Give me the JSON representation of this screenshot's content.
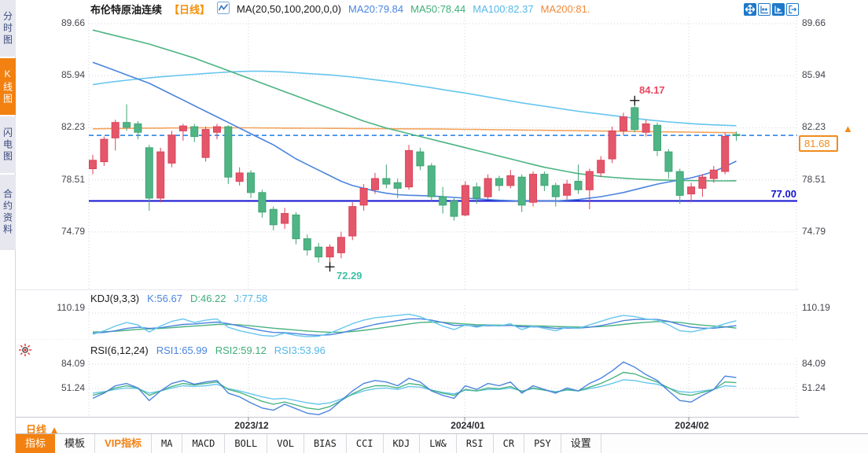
{
  "sidebar": {
    "items": [
      {
        "label": "分时图"
      },
      {
        "label": "K线图"
      },
      {
        "label": "闪电图"
      },
      {
        "label": "合约资料"
      }
    ]
  },
  "header": {
    "symbol": "布伦特原油连续",
    "period": "【日线】",
    "ma_settings": "MA(20,50,100,200,0,0)",
    "ma20": "MA20:79.84",
    "ma50": "MA50:78.44",
    "ma100": "MA100:82.37",
    "ma200": "MA200:81."
  },
  "top_buttons": {
    "icons": [
      "crosshair-move",
      "scale-horizontal",
      "chart-pointer",
      "pan-right"
    ]
  },
  "axes": {
    "main": [
      "89.66",
      "85.94",
      "82.23",
      "78.51",
      "74.79"
    ],
    "kdj": "110.19",
    "rsi_upper": "84.09",
    "rsi_lower": "51.24",
    "x_labels": [
      "2023/12",
      "2024/01",
      "2024/02"
    ]
  },
  "annotations": {
    "high": "84.17",
    "low": "72.29",
    "support": "77.00",
    "last_price": "81.68",
    "arrow": "▲"
  },
  "indicators": {
    "kdj_label": "KDJ(9,3,3)",
    "k": "K:56.67",
    "d": "D:46.22",
    "j": "J:77.58",
    "rsi_label": "RSI(6,12,24)",
    "rsi1": "RSI1:65.99",
    "rsi2": "RSI2:59.12",
    "rsi3": "RSI3:53.96"
  },
  "period_label": "日线",
  "period_arrow": "▲",
  "toolbar": {
    "tabs": [
      "指标",
      "模板",
      "VIP指标",
      "MA",
      "MACD",
      "BOLL",
      "VOL",
      "BIAS",
      "CCI",
      "KDJ",
      "LW&",
      "RSI",
      "CR",
      "PSY",
      "设置"
    ]
  },
  "colors": {
    "up": "#e4576b",
    "up_stroke": "#dd4258",
    "down": "#50b585",
    "down_stroke": "#41a474",
    "ma20": "#4b84dd",
    "ma50": "#4bb381",
    "ma100": "#67c6ee",
    "ma200": "#f3a45f",
    "accent_orange": "#f28111",
    "dashed_price": "#1d7de8",
    "support_blue": "#1010d0",
    "high_text": "#e84860",
    "low_text": "#3fbfa5",
    "grid": "#d3d3df"
  },
  "chart_data": {
    "type": "candlestick",
    "title": "布伦特原油连续 日线",
    "main": {
      "yticks": [
        89.66,
        85.94,
        82.23,
        78.51,
        74.79
      ],
      "ylim": [
        71.3,
        90.1
      ],
      "candles": [
        [
          79.3,
          80.3,
          78.9,
          79.9
        ],
        [
          79.8,
          81.6,
          79.5,
          81.4
        ],
        [
          81.5,
          82.8,
          80.6,
          82.6
        ],
        [
          82.6,
          83.9,
          82.0,
          82.25
        ],
        [
          82.5,
          82.7,
          81.4,
          81.9
        ],
        [
          80.8,
          81.0,
          76.3,
          77.2
        ],
        [
          77.2,
          80.8,
          76.9,
          80.5
        ],
        [
          79.7,
          82.0,
          79.4,
          81.7
        ],
        [
          82.0,
          82.5,
          81.3,
          82.35
        ],
        [
          82.3,
          82.5,
          81.2,
          81.6
        ],
        [
          80.1,
          82.3,
          79.8,
          82.1
        ],
        [
          81.9,
          82.5,
          81.4,
          82.3
        ],
        [
          82.3,
          82.4,
          78.2,
          78.7
        ],
        [
          78.4,
          79.4,
          78.1,
          79.0
        ],
        [
          79.0,
          79.2,
          77.2,
          77.6
        ],
        [
          77.6,
          77.8,
          75.8,
          76.2
        ],
        [
          76.4,
          76.6,
          74.9,
          75.3
        ],
        [
          75.4,
          76.5,
          75.0,
          76.1
        ],
        [
          76.0,
          76.2,
          73.9,
          74.3
        ],
        [
          74.3,
          74.6,
          73.1,
          73.5
        ],
        [
          73.7,
          74.0,
          72.6,
          73.0
        ],
        [
          73.0,
          73.9,
          72.29,
          73.7
        ],
        [
          73.3,
          74.8,
          72.9,
          74.4
        ],
        [
          74.5,
          76.9,
          74.2,
          76.6
        ],
        [
          76.7,
          78.2,
          76.3,
          77.9
        ],
        [
          77.8,
          79.0,
          77.5,
          78.6
        ],
        [
          78.6,
          79.6,
          77.9,
          78.2
        ],
        [
          78.3,
          78.6,
          77.2,
          77.9
        ],
        [
          78.0,
          81.0,
          77.8,
          80.6
        ],
        [
          80.5,
          80.8,
          79.2,
          79.5
        ],
        [
          79.5,
          79.7,
          77.0,
          77.3
        ],
        [
          77.3,
          78.0,
          76.1,
          76.7
        ],
        [
          77.0,
          77.2,
          75.6,
          75.9
        ],
        [
          76.0,
          78.4,
          75.9,
          78.1
        ],
        [
          78.0,
          78.3,
          76.8,
          77.2
        ],
        [
          77.3,
          78.9,
          77.1,
          78.6
        ],
        [
          78.6,
          78.8,
          77.7,
          78.1
        ],
        [
          78.1,
          79.2,
          77.9,
          78.8
        ],
        [
          78.7,
          78.9,
          76.2,
          76.7
        ],
        [
          76.9,
          79.1,
          76.6,
          78.9
        ],
        [
          78.9,
          79.1,
          77.7,
          78.1
        ],
        [
          78.1,
          78.3,
          76.6,
          77.3
        ],
        [
          77.4,
          78.5,
          77.1,
          78.2
        ],
        [
          78.4,
          79.6,
          77.5,
          77.8
        ],
        [
          77.8,
          79.3,
          76.4,
          79.1
        ],
        [
          79.0,
          80.2,
          78.7,
          79.9
        ],
        [
          80.0,
          82.3,
          79.7,
          82.0
        ],
        [
          82.0,
          83.3,
          81.7,
          83.0
        ],
        [
          83.66,
          84.17,
          81.9,
          82.1
        ],
        [
          81.9,
          82.8,
          81.6,
          82.5
        ],
        [
          82.4,
          82.6,
          80.2,
          80.6
        ],
        [
          80.5,
          80.7,
          78.6,
          79.1
        ],
        [
          79.1,
          79.3,
          76.8,
          77.4
        ],
        [
          77.5,
          78.3,
          76.9,
          78.0
        ],
        [
          77.9,
          78.9,
          77.3,
          78.7
        ],
        [
          78.6,
          79.5,
          78.3,
          79.2
        ],
        [
          79.1,
          81.9,
          78.9,
          81.6
        ],
        [
          81.75,
          81.95,
          81.3,
          81.68
        ]
      ],
      "ma20": [
        86.9,
        86.6,
        86.3,
        86.0,
        85.7,
        85.4,
        85.0,
        84.6,
        84.2,
        83.8,
        83.4,
        83.0,
        82.6,
        82.2,
        81.8,
        81.4,
        81.0,
        80.5,
        80.0,
        79.6,
        79.2,
        78.8,
        78.4,
        78.1,
        77.9,
        77.7,
        77.55,
        77.45,
        77.4,
        77.38,
        77.35,
        77.3,
        77.25,
        77.2,
        77.15,
        77.1,
        77.05,
        77.02,
        77.0,
        77.0,
        77.0,
        77.0,
        77.05,
        77.1,
        77.2,
        77.3,
        77.45,
        77.6,
        77.8,
        78.0,
        78.2,
        78.35,
        78.5,
        78.65,
        78.85,
        79.1,
        79.45,
        79.84
      ],
      "ma50": [
        89.2,
        89.0,
        88.8,
        88.6,
        88.4,
        88.2,
        87.95,
        87.7,
        87.45,
        87.2,
        86.9,
        86.6,
        86.3,
        86.0,
        85.7,
        85.4,
        85.1,
        84.8,
        84.5,
        84.2,
        83.9,
        83.6,
        83.3,
        83.0,
        82.7,
        82.45,
        82.2,
        82.0,
        81.8,
        81.6,
        81.4,
        81.2,
        81.0,
        80.8,
        80.6,
        80.4,
        80.2,
        80.0,
        79.8,
        79.6,
        79.4,
        79.25,
        79.1,
        78.95,
        78.85,
        78.75,
        78.68,
        78.62,
        78.57,
        78.53,
        78.5,
        78.48,
        78.46,
        78.45,
        78.44,
        78.43,
        78.43,
        78.44
      ],
      "ma100": [
        85.3,
        85.42,
        85.52,
        85.62,
        85.7,
        85.78,
        85.86,
        85.92,
        85.98,
        86.04,
        86.1,
        86.15,
        86.2,
        86.24,
        86.26,
        86.26,
        86.24,
        86.2,
        86.15,
        86.1,
        86.05,
        86.0,
        85.92,
        85.84,
        85.75,
        85.65,
        85.55,
        85.45,
        85.32,
        85.2,
        85.08,
        84.95,
        84.82,
        84.7,
        84.56,
        84.42,
        84.28,
        84.14,
        84.0,
        83.88,
        83.76,
        83.64,
        83.52,
        83.4,
        83.3,
        83.2,
        83.1,
        83.0,
        82.9,
        82.8,
        82.72,
        82.64,
        82.58,
        82.52,
        82.47,
        82.43,
        82.4,
        82.37
      ],
      "ma200": [
        82.15,
        82.16,
        82.17,
        82.18,
        82.19,
        82.2,
        82.2,
        82.21,
        82.21,
        82.22,
        82.22,
        82.22,
        82.22,
        82.22,
        82.22,
        82.21,
        82.21,
        82.2,
        82.2,
        82.19,
        82.19,
        82.18,
        82.18,
        82.17,
        82.17,
        82.16,
        82.16,
        82.15,
        82.15,
        82.14,
        82.14,
        82.13,
        82.12,
        82.11,
        82.1,
        82.09,
        82.08,
        82.07,
        82.06,
        82.05,
        82.04,
        82.03,
        82.02,
        82.01,
        82.0,
        81.99,
        81.98,
        81.97,
        81.96,
        81.95,
        81.94,
        81.93,
        81.92,
        81.91,
        81.9,
        81.89,
        81.88,
        81.87
      ],
      "high_annotation": {
        "value": 84.17,
        "index": 48
      },
      "low_annotation": {
        "value": 72.29,
        "index": 21
      },
      "support_level": 77.0,
      "last_price": 81.68
    },
    "kdj": {
      "params": "9,3,3",
      "ytick": 110.19,
      "current": {
        "k": 56.67,
        "d": 46.22,
        "j": 77.58
      },
      "k": [
        25,
        28,
        35,
        45,
        50,
        45,
        48,
        55,
        62,
        64,
        68,
        72,
        65,
        55,
        45,
        35,
        28,
        27,
        23,
        18,
        16,
        18,
        26,
        38,
        50,
        62,
        70,
        78,
        85,
        86,
        80,
        70,
        58,
        58,
        55,
        57,
        56,
        58,
        52,
        52,
        50,
        45,
        47,
        46,
        50,
        57,
        67,
        78,
        83,
        84,
        83,
        75,
        61,
        50,
        46,
        46,
        51,
        56.67
      ],
      "d": [
        30,
        31,
        33,
        37,
        41,
        43,
        45,
        48,
        52,
        55,
        58,
        62,
        62,
        60,
        56,
        51,
        46,
        42,
        38,
        34,
        31,
        29,
        29,
        32,
        37,
        43,
        50,
        57,
        64,
        70,
        72,
        71,
        67,
        64,
        61,
        60,
        59,
        59,
        57,
        56,
        55,
        53,
        52,
        51,
        51,
        53,
        57,
        62,
        67,
        71,
        74,
        74,
        70,
        64,
        59,
        55,
        52,
        46.22
      ],
      "j": [
        20,
        35,
        55,
        70,
        60,
        30,
        55,
        75,
        85,
        70,
        80,
        85,
        50,
        35,
        25,
        15,
        12,
        25,
        15,
        10,
        12,
        25,
        45,
        65,
        80,
        90,
        95,
        100,
        105,
        95,
        75,
        55,
        40,
        60,
        50,
        60,
        55,
        65,
        40,
        55,
        45,
        35,
        50,
        45,
        60,
        75,
        90,
        100,
        95,
        85,
        80,
        60,
        35,
        30,
        40,
        50,
        65,
        77.58
      ]
    },
    "rsi": {
      "params": "6,12,24",
      "yticks": [
        84.09,
        51.24
      ],
      "current": {
        "rsi1": 65.99,
        "rsi2": 59.12,
        "rsi3": 53.96
      },
      "rsi1": [
        38,
        45,
        55,
        58,
        52,
        35,
        48,
        58,
        62,
        57,
        60,
        62,
        45,
        40,
        32,
        25,
        22,
        30,
        24,
        18,
        16,
        22,
        35,
        48,
        58,
        62,
        60,
        55,
        65,
        60,
        48,
        42,
        38,
        55,
        50,
        58,
        55,
        60,
        45,
        55,
        50,
        45,
        52,
        48,
        58,
        65,
        75,
        87,
        80,
        70,
        62,
        48,
        35,
        33,
        42,
        50,
        68,
        65.99
      ],
      "rsi2": [
        42,
        46,
        52,
        55,
        52,
        42,
        48,
        54,
        58,
        56,
        58,
        60,
        50,
        46,
        40,
        34,
        30,
        33,
        29,
        25,
        23,
        27,
        35,
        44,
        51,
        55,
        55,
        52,
        58,
        56,
        49,
        45,
        42,
        50,
        48,
        52,
        51,
        54,
        47,
        52,
        49,
        46,
        50,
        48,
        53,
        58,
        65,
        73,
        71,
        65,
        60,
        52,
        44,
        42,
        46,
        50,
        60,
        59.12
      ],
      "rsi3": [
        45,
        47,
        50,
        52,
        51,
        45,
        48,
        52,
        55,
        54,
        55,
        57,
        51,
        48,
        44,
        40,
        37,
        38,
        35,
        32,
        30,
        32,
        37,
        43,
        48,
        51,
        52,
        50,
        54,
        53,
        49,
        46,
        44,
        49,
        48,
        50,
        50,
        52,
        48,
        51,
        49,
        47,
        49,
        48,
        51,
        54,
        58,
        63,
        62,
        59,
        57,
        52,
        47,
        46,
        48,
        50,
        55,
        53.96
      ]
    },
    "x_ticks": [
      {
        "label": "2023/12",
        "index": 14
      },
      {
        "label": "2024/01",
        "index": 33
      },
      {
        "label": "2024/02",
        "index": 53
      }
    ]
  }
}
